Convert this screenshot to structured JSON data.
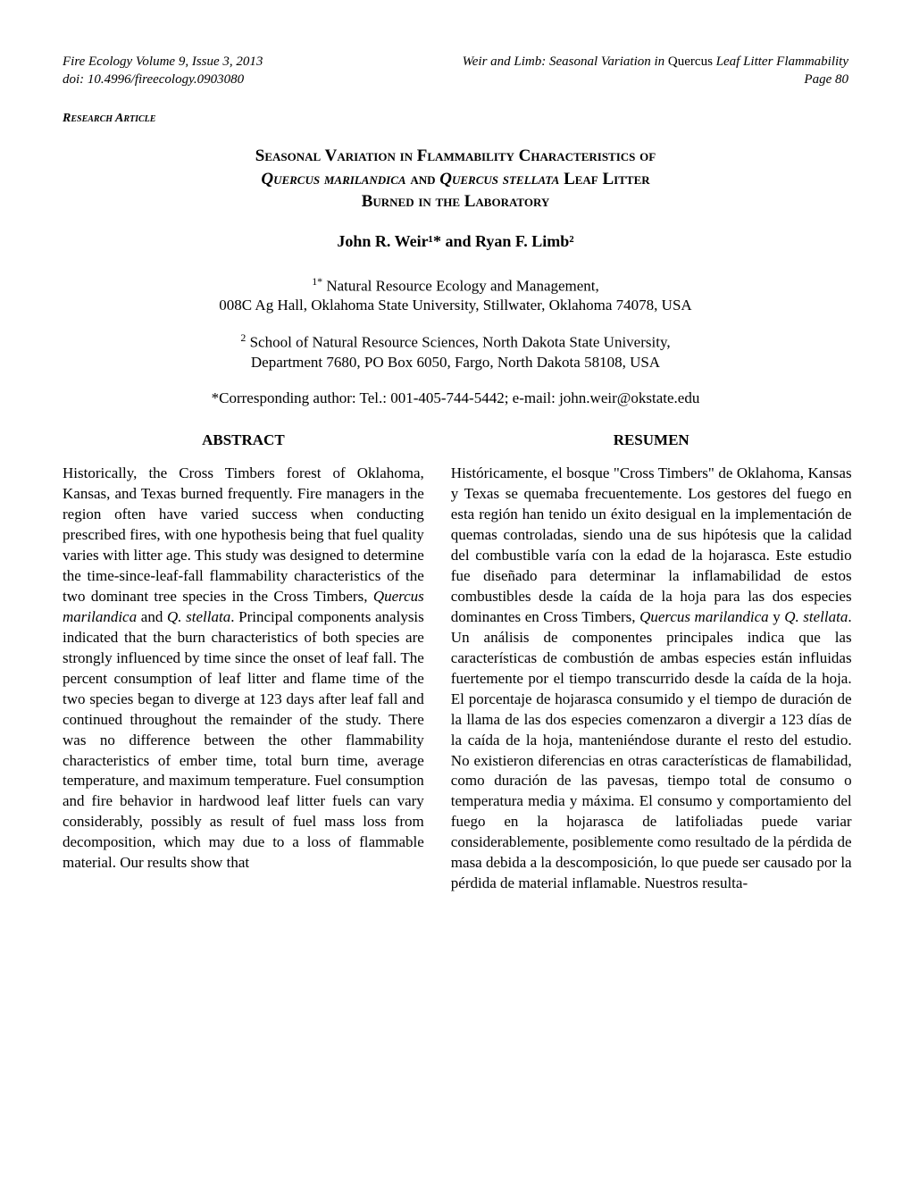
{
  "header": {
    "journal": "Fire Ecology Volume 9, Issue 3, 2013",
    "doi": "doi: 10.4996/fireecology.0903080",
    "running_title_prefix": "Weir and Limb:  Seasonal Variation in ",
    "running_title_italic": "Quercus",
    "running_title_suffix": " Leaf Litter Flammability",
    "page": "Page 80"
  },
  "article_type": "Research Article",
  "title": {
    "line1_caps": "Seasonal Variation in Flammability Characteristics of",
    "line2_italic1": "Quercus marilandica",
    "line2_mid": " and ",
    "line2_italic2": "Quercus stellata",
    "line2_end": " Leaf Litter",
    "line3_caps": "Burned in the Laboratory"
  },
  "authors": "John R. Weir¹* and Ryan F. Limb²",
  "affiliations": {
    "a1_sup": "1*",
    "a1_line1": " Natural Resource Ecology and Management,",
    "a1_line2": "008C Ag Hall, Oklahoma State University, Stillwater, Oklahoma 74078, USA",
    "a2_sup": "2",
    "a2_line1": " School of Natural Resource Sciences, North Dakota State University,",
    "a2_line2": "Department 7680, PO Box 6050, Fargo, North Dakota 58108, USA"
  },
  "corresponding": "*Corresponding author:  Tel.: 001-405-744-5442; e-mail: john.weir@okstate.edu",
  "abstract": {
    "heading": "ABSTRACT",
    "text1": "Historically, the Cross Timbers forest of Oklahoma, Kansas, and Texas burned frequently.  Fire managers in the region often have varied success when conducting prescribed fires, with one hypothesis being that fuel quality varies with litter age.  This study was designed to determine the time-since-leaf-fall flammability characteristics of the two dominant tree species in the Cross Timbers, ",
    "species1": "Quercus marilandica",
    "text2": " and ",
    "species2": "Q. stellata",
    "text3": ".  Principal components analysis indicated that the burn characteristics of both species are strongly influenced by time since the onset of leaf fall.  The percent consumption of leaf litter and flame time of the two species began to diverge at 123 days after leaf fall and continued throughout the remainder of the study.  There was no difference between the other flammability characteristics of ember time, total burn time, average temperature, and maximum temperature.  Fuel consumption and fire behavior in hardwood leaf litter fuels can vary considerably, possibly as result of fuel mass loss from decomposition, which may due to a loss of flammable material.  Our results show that"
  },
  "resumen": {
    "heading": "RESUMEN",
    "text1": "Históricamente, el bosque \"Cross Timbers\" de Oklahoma, Kansas y Texas se quemaba frecuentemente.  Los gestores del fuego en esta región han tenido un éxito desigual en la implementación de quemas controladas, siendo una de sus hipótesis que la calidad del combustible varía con la edad de la hojarasca.  Este estudio fue diseñado para determinar la inflamabilidad de estos combustibles desde la caída de la hoja para las dos especies dominantes en Cross Timbers, ",
    "species1": "Quercus marilandica",
    "text2": " y ",
    "species2": "Q. stellata",
    "text3": ".  Un análisis de componentes principales indica que las características de combustión de ambas especies están influidas fuertemente por el tiempo transcurrido desde la caída de la hoja.  El porcentaje de hojarasca consumido y el tiempo de duración de la llama de las dos especies comenzaron a divergir a 123 días de la caída de la hoja, manteniéndose durante el resto del estudio.  No existieron diferencias en otras características de flamabilidad, como duración de las pavesas, tiempo total de consumo o temperatura media y máxima.  El consumo y comportamiento del fuego en la hojarasca de latifoliadas puede variar considerablemente, posiblemente como resultado de la pérdida de masa debida a la descomposición, lo que puede ser causado por la pérdida de material inflamable.  Nuestros resulta-"
  }
}
